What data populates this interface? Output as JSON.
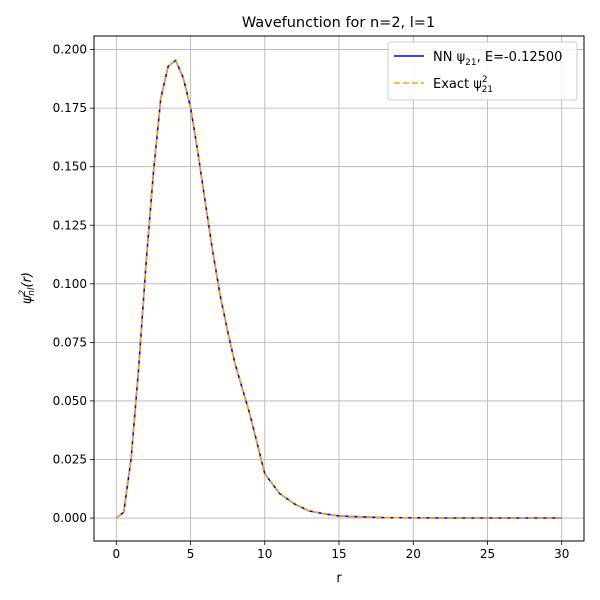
{
  "chart_data": {
    "type": "line",
    "title": "Wavefunction for n=2, l=1",
    "xlabel": "r",
    "ylabel": "ψ²nl(r)",
    "xlim": [
      -1.5,
      31.5
    ],
    "ylim": [
      -0.0098,
      0.2058
    ],
    "xticks": [
      0,
      5,
      10,
      15,
      20,
      25,
      30
    ],
    "xtick_labels": [
      "0",
      "5",
      "10",
      "15",
      "20",
      "25",
      "30"
    ],
    "yticks": [
      0.0,
      0.025,
      0.05,
      0.075,
      0.1,
      0.125,
      0.15,
      0.175,
      0.2
    ],
    "ytick_labels": [
      "0.000",
      "0.025",
      "0.050",
      "0.075",
      "0.100",
      "0.125",
      "0.150",
      "0.175",
      "0.200"
    ],
    "grid": true,
    "legend_position": "top-right",
    "x": [
      0,
      0.5,
      1,
      1.5,
      2,
      2.5,
      3,
      3.5,
      4,
      4.5,
      5,
      5.5,
      6,
      6.5,
      7,
      7.5,
      8,
      9,
      10,
      11,
      12,
      13,
      14,
      15,
      16,
      18,
      20,
      22,
      25,
      28,
      30
    ],
    "series": [
      {
        "name": "NN ψ21, E=-0.12500",
        "color": "#0000ff",
        "style": "solid",
        "values": [
          0.0,
          0.0024,
          0.0253,
          0.0632,
          0.1083,
          0.1474,
          0.1792,
          0.1929,
          0.1954,
          0.1881,
          0.1755,
          0.156,
          0.1344,
          0.1136,
          0.095,
          0.0798,
          0.0658,
          0.0443,
          0.0189,
          0.0105,
          0.006,
          0.003,
          0.0018,
          0.0009,
          0.0006,
          0.0002,
          0.0001,
          0.0,
          0.0,
          0.0,
          0.0
        ]
      },
      {
        "name": "Exact ψ²21",
        "color": "#ffa500",
        "style": "dashed",
        "values": [
          0.0,
          0.0024,
          0.0253,
          0.0632,
          0.1083,
          0.1474,
          0.1792,
          0.1929,
          0.1954,
          0.1881,
          0.1755,
          0.156,
          0.1344,
          0.1136,
          0.095,
          0.0798,
          0.0658,
          0.0443,
          0.0189,
          0.0105,
          0.006,
          0.003,
          0.0018,
          0.0009,
          0.0006,
          0.0002,
          0.0001,
          0.0,
          0.0,
          0.0,
          0.0
        ]
      }
    ],
    "legend": [
      {
        "main": "NN ψ",
        "sub": "21",
        "sup": "",
        "tail": ", E=-0.12500"
      },
      {
        "main": "Exact ψ",
        "sub": "21",
        "sup": "2",
        "tail": ""
      }
    ]
  }
}
